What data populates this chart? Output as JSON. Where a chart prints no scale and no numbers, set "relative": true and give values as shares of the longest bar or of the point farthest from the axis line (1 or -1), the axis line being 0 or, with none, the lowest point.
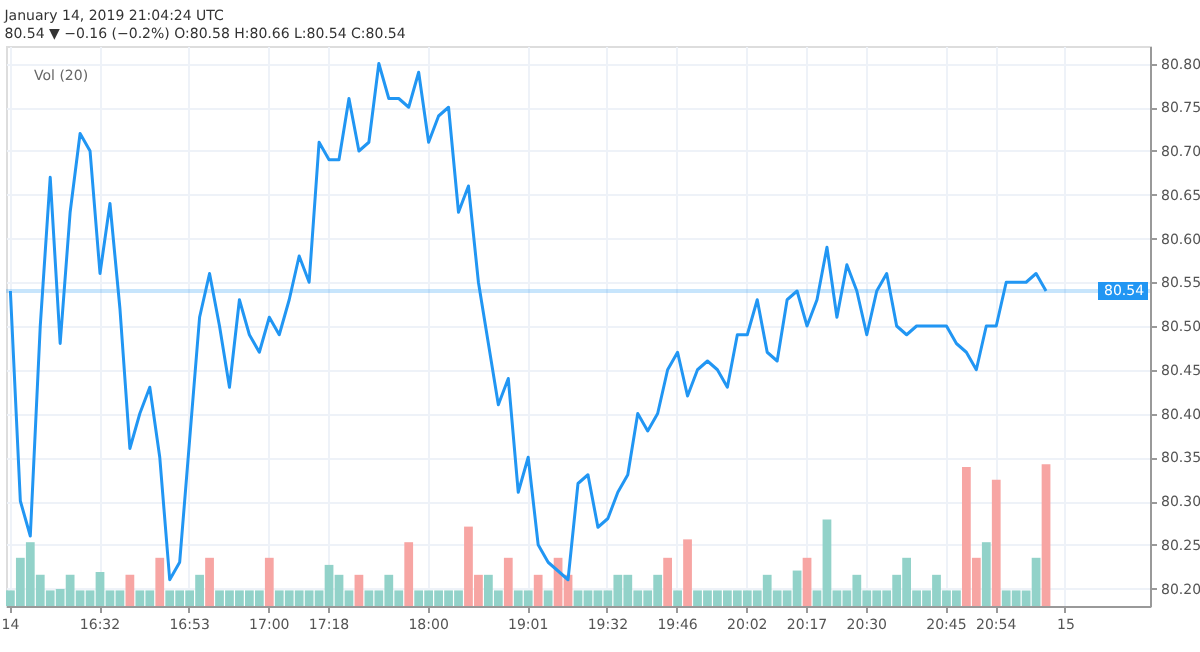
{
  "chart_data": [
    {
      "type": "line",
      "annotations": [
        "January 14, 2019 21:04:24 UTC",
        "80.54 ▼ −0.16 (−0.2%) O:80.58 H:80.66 L:80.54 C:80.54"
      ],
      "categories": [
        "14",
        null,
        null,
        null,
        null,
        null,
        null,
        null,
        null,
        "16:32",
        null,
        null,
        null,
        null,
        null,
        null,
        null,
        null,
        "16:53",
        null,
        null,
        null,
        null,
        null,
        null,
        null,
        "17:00",
        null,
        null,
        null,
        null,
        null,
        "17:18",
        null,
        null,
        null,
        null,
        null,
        null,
        null,
        null,
        null,
        "18:00",
        null,
        null,
        null,
        null,
        null,
        null,
        null,
        null,
        null,
        "19:01",
        null,
        null,
        null,
        null,
        null,
        null,
        null,
        "19:32",
        null,
        null,
        null,
        null,
        null,
        null,
        "19:46",
        null,
        null,
        null,
        null,
        null,
        null,
        "20:02",
        null,
        null,
        null,
        null,
        null,
        "20:17",
        null,
        null,
        null,
        null,
        null,
        "20:30",
        null,
        null,
        null,
        null,
        null,
        null,
        null,
        "20:45",
        null,
        null,
        null,
        null,
        "20:54",
        null,
        null,
        null,
        null,
        null,
        null,
        "15",
        null,
        null,
        null,
        null,
        null,
        null,
        null,
        null
      ],
      "series": [
        {
          "color": "#2196f3",
          "values": [
            80.54,
            80.3,
            80.26,
            80.5,
            80.67,
            80.48,
            80.63,
            80.72,
            80.7,
            80.56,
            80.64,
            80.52,
            80.36,
            80.4,
            80.43,
            80.35,
            80.21,
            80.23,
            80.37,
            80.51,
            80.56,
            80.5,
            80.43,
            80.53,
            80.49,
            80.47,
            80.51,
            80.49,
            80.53,
            80.58,
            80.55,
            80.71,
            80.69,
            80.69,
            80.76,
            80.7,
            80.71,
            80.8,
            80.76,
            80.76,
            80.75,
            80.79,
            80.71,
            80.74,
            80.75,
            80.63,
            80.66,
            80.55,
            80.48,
            80.41,
            80.44,
            80.31,
            80.35,
            80.25,
            80.23,
            80.22,
            80.21,
            80.32,
            80.33,
            80.27,
            80.28,
            80.31,
            80.33,
            80.4,
            80.38,
            80.4,
            80.45,
            80.47,
            80.42,
            80.45,
            80.46,
            80.45,
            80.43,
            80.49,
            80.49,
            80.53,
            80.47,
            80.46,
            80.53,
            80.54,
            80.5,
            80.53,
            80.59,
            80.51,
            80.57,
            80.54,
            80.49,
            80.54,
            80.56,
            80.5,
            80.49,
            80.5,
            80.5,
            80.5,
            80.5,
            80.48,
            80.47,
            80.45,
            80.5,
            80.5,
            80.55,
            80.55,
            80.55,
            80.56,
            80.54,
            null,
            null,
            null,
            null,
            null,
            null,
            null,
            null,
            null,
            null
          ]
        }
      ],
      "ylim": [
        80.18,
        80.82
      ],
      "yticks": [
        {
          "value": 80.2,
          "label": "80.20"
        },
        80.25,
        {
          "value": 80.3,
          "label": "80.30"
        },
        80.35,
        {
          "value": 80.4,
          "label": "80.40"
        },
        80.45,
        {
          "value": 80.5,
          "label": "80.50"
        },
        80.55,
        {
          "value": 80.6,
          "label": "80.60"
        },
        80.65,
        {
          "value": 80.7,
          "label": "80.70"
        },
        80.75,
        {
          "value": 80.8,
          "label": "80.80"
        }
      ],
      "ref_lines": [
        {
          "axis": "y",
          "value": 80.54,
          "label": "80.54",
          "color": "#2196f3"
        }
      ],
      "grid": true
    },
    {
      "type": "bar",
      "relative": true,
      "title": "Vol (20)",
      "values": [
        0.11,
        0.34,
        0.45,
        0.22,
        0.11,
        0.12,
        0.22,
        0.11,
        0.11,
        0.24,
        0.11,
        0.11,
        0.22,
        0.11,
        0.11,
        0.34,
        0.11,
        0.11,
        0.11,
        0.22,
        0.34,
        0.11,
        0.11,
        0.11,
        0.11,
        0.11,
        0.34,
        0.11,
        0.11,
        0.11,
        0.11,
        0.11,
        0.29,
        0.22,
        0.11,
        0.22,
        0.11,
        0.11,
        0.22,
        0.11,
        0.45,
        0.11,
        0.11,
        0.11,
        0.11,
        0.11,
        0.56,
        0.22,
        0.22,
        0.11,
        0.34,
        0.11,
        0.11,
        0.22,
        0.11,
        0.34,
        0.22,
        0.11,
        0.11,
        0.11,
        0.11,
        0.22,
        0.22,
        0.11,
        0.11,
        0.22,
        0.34,
        0.11,
        0.47,
        0.11,
        0.11,
        0.11,
        0.11,
        0.11,
        0.11,
        0.11,
        0.22,
        0.11,
        0.11,
        0.25,
        0.34,
        0.11,
        0.61,
        0.11,
        0.11,
        0.22,
        0.11,
        0.11,
        0.11,
        0.22,
        0.34,
        0.11,
        0.11,
        0.22,
        0.11,
        0.11,
        0.98,
        0.34,
        0.45,
        0.89,
        0.11,
        0.11,
        0.11,
        0.34,
        1,
        null,
        null,
        null,
        null,
        null,
        null,
        null,
        null,
        null,
        null
      ],
      "colors": [
        "#92d2c9",
        "#92d2c9",
        "#92d2c9",
        "#92d2c9",
        "#92d2c9",
        "#92d2c9",
        "#92d2c9",
        "#92d2c9",
        "#92d2c9",
        "#92d2c9",
        "#92d2c9",
        "#92d2c9",
        "#f7a5a3",
        "#92d2c9",
        "#92d2c9",
        "#f7a5a3",
        "#92d2c9",
        "#92d2c9",
        "#92d2c9",
        "#92d2c9",
        "#f7a5a3",
        "#92d2c9",
        "#92d2c9",
        "#92d2c9",
        "#92d2c9",
        "#92d2c9",
        "#f7a5a3",
        "#92d2c9",
        "#92d2c9",
        "#92d2c9",
        "#92d2c9",
        "#92d2c9",
        "#92d2c9",
        "#92d2c9",
        "#92d2c9",
        "#f7a5a3",
        "#92d2c9",
        "#92d2c9",
        "#92d2c9",
        "#92d2c9",
        "#f7a5a3",
        "#92d2c9",
        "#92d2c9",
        "#92d2c9",
        "#92d2c9",
        "#92d2c9",
        "#f7a5a3",
        "#f7a5a3",
        "#92d2c9",
        "#92d2c9",
        "#f7a5a3",
        "#92d2c9",
        "#92d2c9",
        "#f7a5a3",
        "#92d2c9",
        "#f7a5a3",
        "#f7a5a3",
        "#92d2c9",
        "#92d2c9",
        "#92d2c9",
        "#92d2c9",
        "#92d2c9",
        "#92d2c9",
        "#92d2c9",
        "#92d2c9",
        "#92d2c9",
        "#f7a5a3",
        "#92d2c9",
        "#f7a5a3",
        "#92d2c9",
        "#92d2c9",
        "#92d2c9",
        "#92d2c9",
        "#92d2c9",
        "#92d2c9",
        "#92d2c9",
        "#92d2c9",
        "#92d2c9",
        "#92d2c9",
        "#92d2c9",
        "#f7a5a3",
        "#92d2c9",
        "#92d2c9",
        "#92d2c9",
        "#92d2c9",
        "#92d2c9",
        "#92d2c9",
        "#92d2c9",
        "#92d2c9",
        "#92d2c9",
        "#92d2c9",
        "#92d2c9",
        "#92d2c9",
        "#92d2c9",
        "#92d2c9",
        "#92d2c9",
        "#f7a5a3",
        "#f7a5a3",
        "#92d2c9",
        "#f7a5a3",
        "#92d2c9",
        "#92d2c9",
        "#92d2c9",
        "#92d2c9",
        "#f7a5a3",
        null,
        null,
        null,
        null,
        null,
        null,
        null,
        null,
        null,
        null
      ]
    }
  ]
}
